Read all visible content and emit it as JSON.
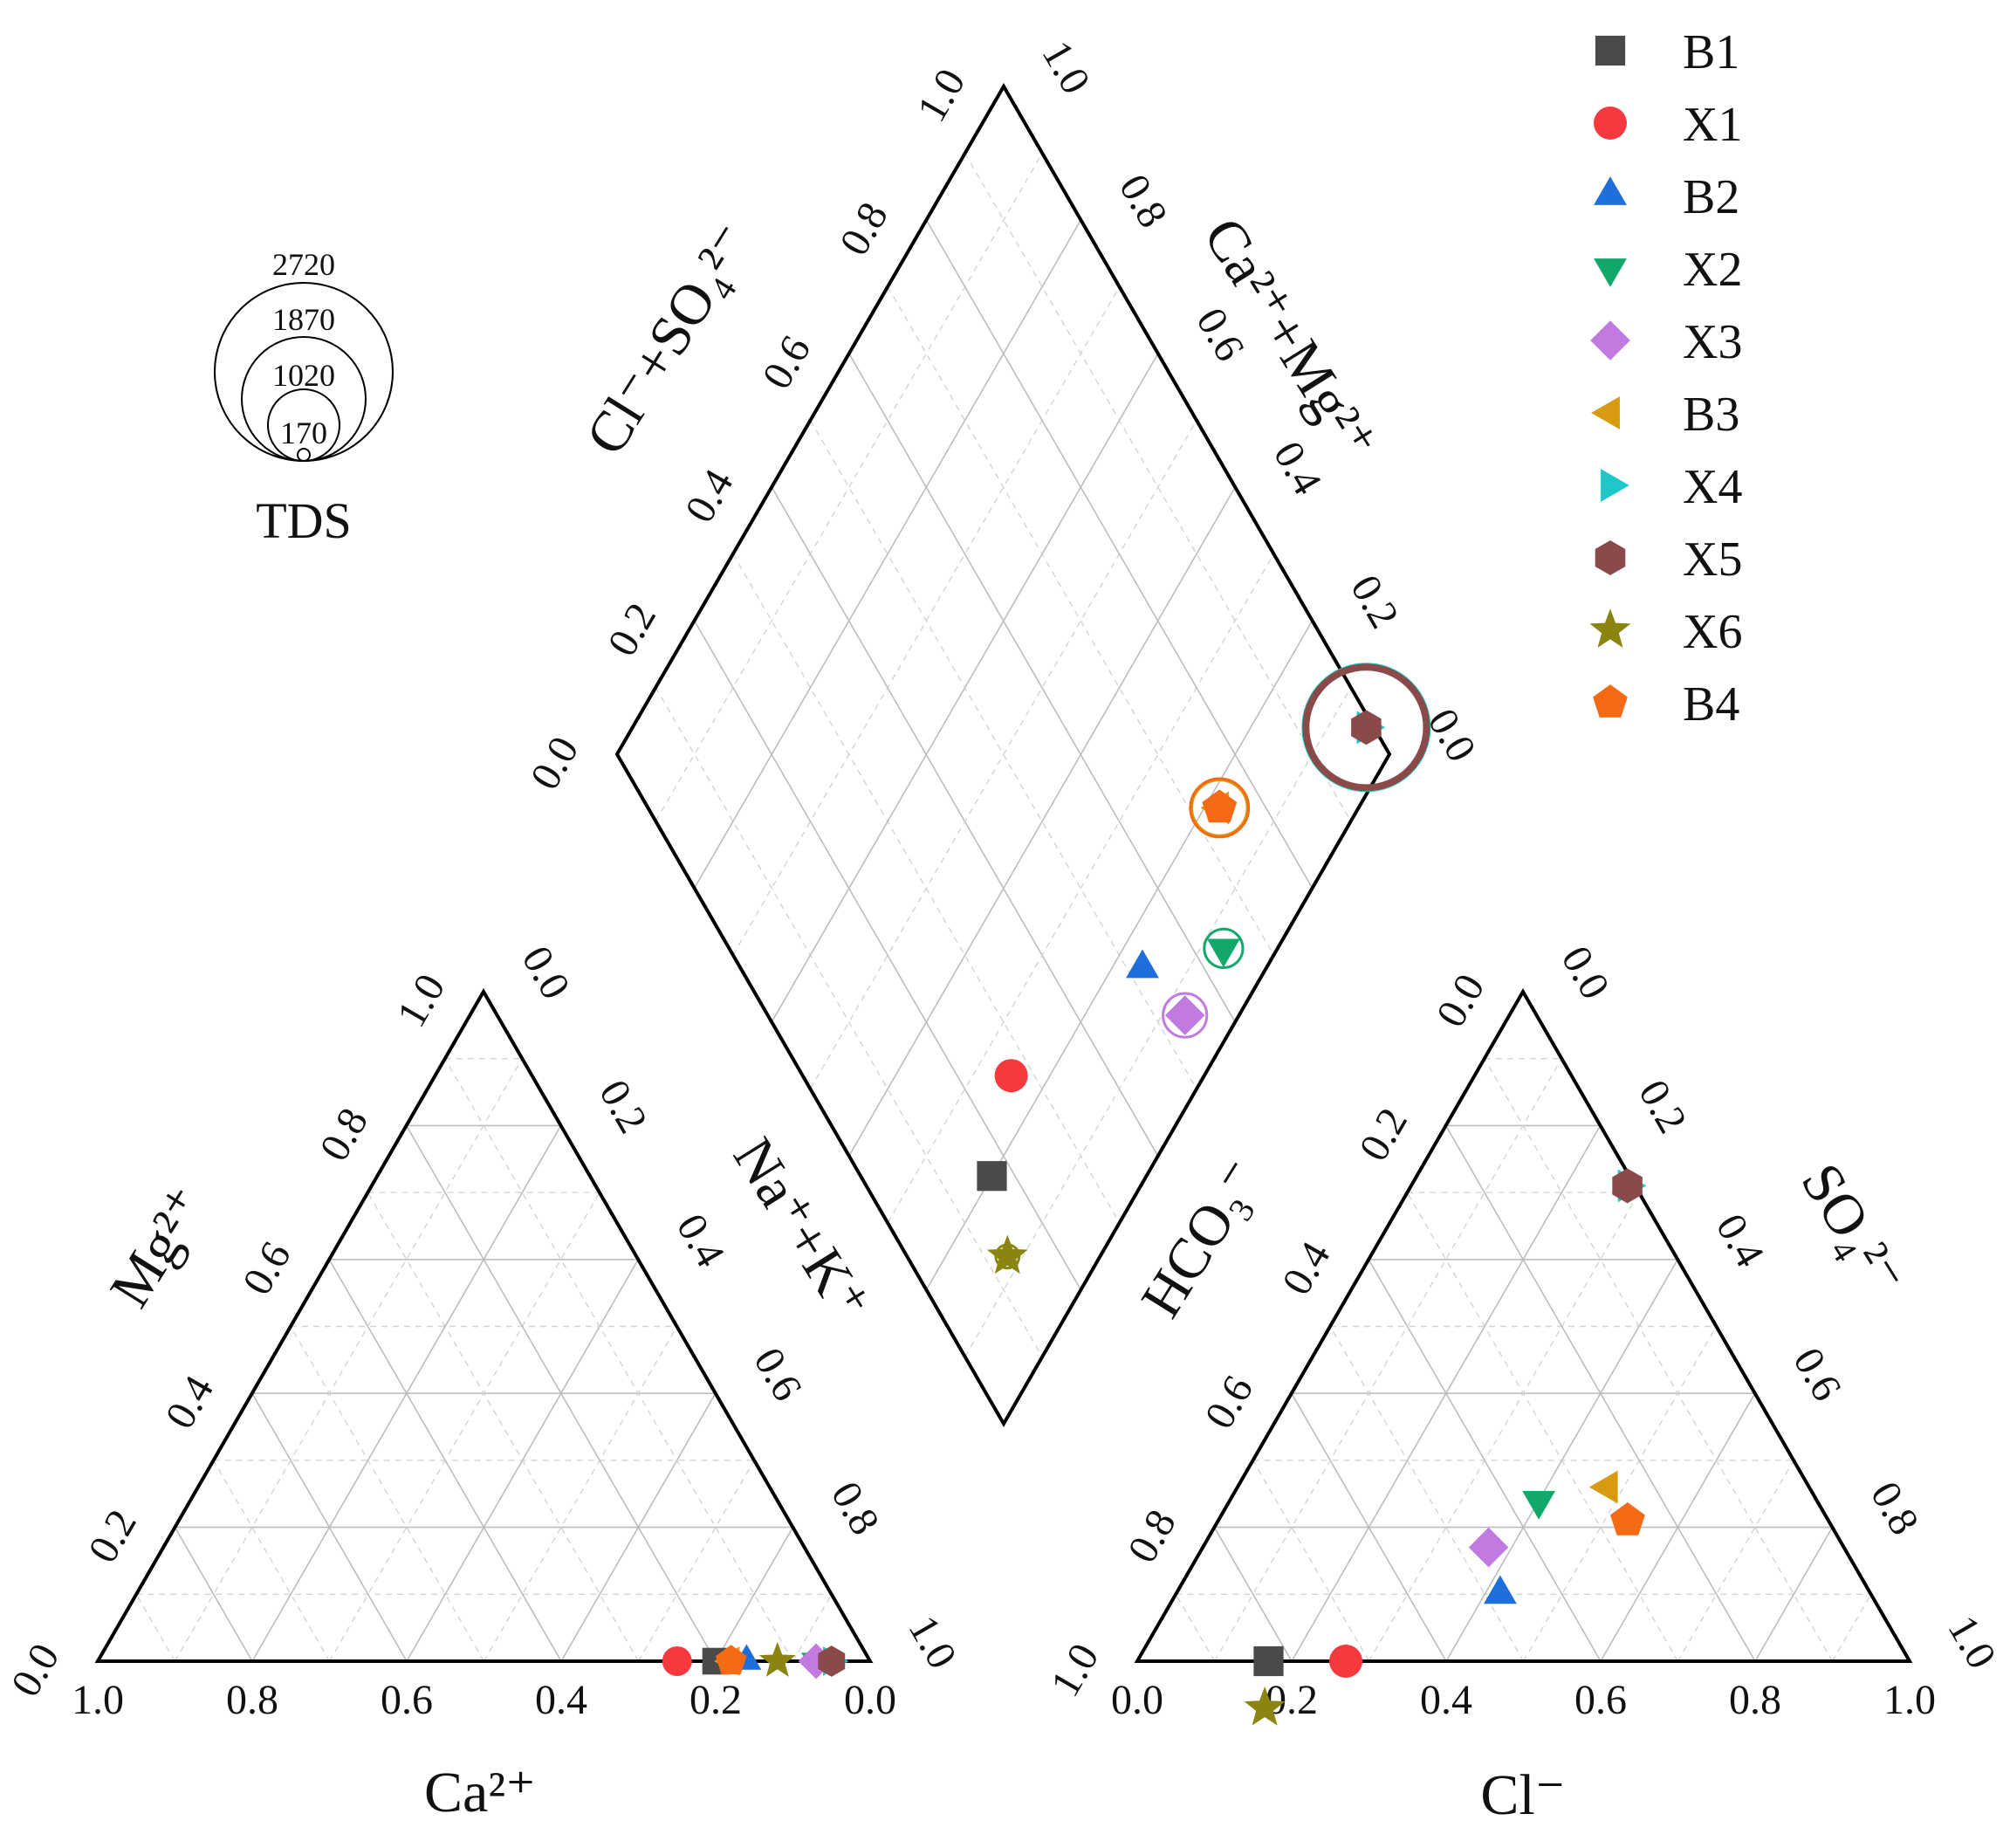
{
  "chart_data": {
    "type": "scatter",
    "subtype": "piper-diagram",
    "cation_triangle": {
      "bottom_axis_label": "Ca²⁺",
      "left_axis_label": "Mg²⁺",
      "right_axis_label": "Na⁺+K⁺",
      "bottom_ticks": [
        "1.0",
        "0.8",
        "0.6",
        "0.4",
        "0.2",
        "0.0"
      ],
      "left_ticks": [
        "0.0",
        "0.2",
        "0.4",
        "0.6",
        "0.8",
        "1.0"
      ],
      "right_ticks": [
        "0.0",
        "0.2",
        "0.4",
        "0.6",
        "0.8",
        "1.0"
      ]
    },
    "anion_triangle": {
      "bottom_axis_label": "Cl⁻",
      "left_axis_label": "HCO₃⁻",
      "right_axis_label": "SO₄²⁻",
      "bottom_ticks": [
        "0.0",
        "0.2",
        "0.4",
        "0.6",
        "0.8",
        "1.0"
      ],
      "left_ticks": [
        "1.0",
        "0.8",
        "0.6",
        "0.4",
        "0.2",
        "0.0"
      ],
      "right_ticks": [
        "0.0",
        "0.2",
        "0.4",
        "0.6",
        "0.8",
        "1.0"
      ]
    },
    "diamond": {
      "upper_left_axis_label": "Cl⁻+SO₄²⁻",
      "upper_right_axis_label": "Ca²⁺+Mg²⁺",
      "upper_left_ticks": [
        "0.0",
        "0.2",
        "0.4",
        "0.6",
        "0.8",
        "1.0"
      ],
      "upper_right_ticks": [
        "1.0",
        "0.8",
        "0.6",
        "0.4",
        "0.2",
        "0.0"
      ]
    },
    "tds_legend": {
      "title": "TDS",
      "values": [
        170,
        1020,
        1870,
        2720
      ]
    },
    "legend_position": "top-right",
    "series": [
      {
        "name": "B1",
        "marker": "square",
        "color": "#4a4a4a",
        "ca": 0.2,
        "mg": 0.0,
        "nak": 0.8,
        "hco3": 0.83,
        "cl": 0.17,
        "so4": 0.0,
        "tds": 0
      },
      {
        "name": "X1",
        "marker": "circle",
        "color": "#f5393f",
        "ca": 0.25,
        "mg": 0.0,
        "nak": 0.75,
        "hco3": 0.73,
        "cl": 0.27,
        "so4": 0.0,
        "tds": 0
      },
      {
        "name": "B2",
        "marker": "triangle-up",
        "color": "#1e6fdc",
        "ca": 0.16,
        "mg": 0.0,
        "nak": 0.84,
        "hco3": 0.48,
        "cl": 0.42,
        "so4": 0.1,
        "tds": 0
      },
      {
        "name": "X2",
        "marker": "triangle-down",
        "color": "#12a86a",
        "ca": 0.07,
        "mg": 0.0,
        "nak": 0.93,
        "hco3": 0.36,
        "cl": 0.4,
        "so4": 0.24,
        "tds": 270
      },
      {
        "name": "X3",
        "marker": "diamond",
        "color": "#c07ae0",
        "ca": 0.07,
        "mg": 0.0,
        "nak": 0.93,
        "hco3": 0.46,
        "cl": 0.37,
        "so4": 0.17,
        "tds": 350
      },
      {
        "name": "B3",
        "marker": "triangle-left",
        "color": "#d79a10",
        "ca": 0.18,
        "mg": 0.0,
        "nak": 0.82,
        "hco3": 0.26,
        "cl": 0.48,
        "so4": 0.26,
        "tds": 560
      },
      {
        "name": "X4",
        "marker": "triangle-right",
        "color": "#1ec8c8",
        "ca": 0.05,
        "mg": 0.0,
        "nak": 0.95,
        "hco3": 0.01,
        "cl": 0.28,
        "so4": 0.71,
        "tds": 2720
      },
      {
        "name": "X5",
        "marker": "hexagon",
        "color": "#8a4a4a",
        "ca": 0.05,
        "mg": 0.0,
        "nak": 0.95,
        "hco3": 0.01,
        "cl": 0.28,
        "so4": 0.71,
        "tds": 2650
      },
      {
        "name": "X6",
        "marker": "star",
        "color": "#8a8510",
        "ca": 0.12,
        "mg": 0.0,
        "nak": 0.88,
        "hco3": 0.87,
        "cl": 0.2,
        "so4": -0.07,
        "tds": 100
      },
      {
        "name": "B4",
        "marker": "pentagon",
        "color": "#f56a14",
        "ca": 0.18,
        "mg": 0.0,
        "nak": 0.82,
        "hco3": 0.26,
        "cl": 0.53,
        "so4": 0.21,
        "tds": 620
      }
    ]
  }
}
